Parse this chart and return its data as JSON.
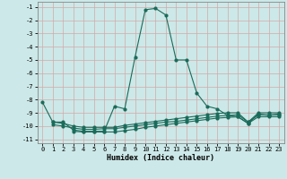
{
  "xlabel": "Humidex (Indice chaleur)",
  "background_color": "#cce8e8",
  "grid_color": "#d4a8a8",
  "line_color": "#1a6b5a",
  "xlim": [
    -0.5,
    23.5
  ],
  "ylim": [
    -11.3,
    -0.6
  ],
  "yticks": [
    -1,
    -2,
    -3,
    -4,
    -5,
    -6,
    -7,
    -8,
    -9,
    -10,
    -11
  ],
  "xticks": [
    0,
    1,
    2,
    3,
    4,
    5,
    6,
    7,
    8,
    9,
    10,
    11,
    12,
    13,
    14,
    15,
    16,
    17,
    18,
    19,
    20,
    21,
    22,
    23
  ],
  "main_line_x": [
    0,
    1,
    2,
    3,
    4,
    5,
    6,
    7,
    8,
    9,
    10,
    11,
    12,
    13,
    14,
    15,
    16,
    17,
    18,
    19,
    20,
    21,
    22,
    23
  ],
  "main_line_y": [
    -8.2,
    -9.7,
    -9.7,
    -10.3,
    -10.4,
    -10.4,
    -10.4,
    -8.5,
    -8.7,
    -4.8,
    -1.2,
    -1.1,
    -1.6,
    -5.0,
    -5.0,
    -7.5,
    -8.5,
    -8.7,
    -9.2,
    -9.3,
    -9.8,
    -9.1,
    -9.2,
    -9.1
  ],
  "flat_line1_x": [
    1,
    2,
    3,
    4,
    5,
    6,
    7,
    8,
    9,
    10,
    11,
    12,
    13,
    14,
    15,
    16,
    17,
    18,
    19,
    20,
    21,
    22,
    23
  ],
  "flat_line1_y": [
    -9.7,
    -9.8,
    -10.0,
    -10.1,
    -10.1,
    -10.1,
    -10.1,
    -9.95,
    -9.85,
    -9.75,
    -9.65,
    -9.55,
    -9.45,
    -9.35,
    -9.25,
    -9.15,
    -9.05,
    -9.0,
    -9.0,
    -9.7,
    -9.0,
    -9.0,
    -9.0
  ],
  "flat_line2_x": [
    1,
    2,
    3,
    4,
    5,
    6,
    7,
    8,
    9,
    10,
    11,
    12,
    13,
    14,
    15,
    16,
    17,
    18,
    19,
    20,
    21,
    22,
    23
  ],
  "flat_line2_y": [
    -9.9,
    -10.0,
    -10.15,
    -10.25,
    -10.25,
    -10.2,
    -10.2,
    -10.1,
    -10.0,
    -9.9,
    -9.8,
    -9.7,
    -9.65,
    -9.55,
    -9.45,
    -9.35,
    -9.25,
    -9.2,
    -9.15,
    -9.7,
    -9.15,
    -9.15,
    -9.15
  ],
  "flat_line3_x": [
    3,
    4,
    5,
    6,
    7,
    8,
    9,
    10,
    11,
    12,
    13,
    14,
    15,
    16,
    17,
    18,
    19,
    20,
    21,
    22,
    23
  ],
  "flat_line3_y": [
    -10.4,
    -10.45,
    -10.45,
    -10.45,
    -10.45,
    -10.35,
    -10.25,
    -10.1,
    -10.0,
    -9.9,
    -9.8,
    -9.7,
    -9.6,
    -9.5,
    -9.4,
    -9.35,
    -9.3,
    -9.8,
    -9.3,
    -9.3,
    -9.3
  ]
}
